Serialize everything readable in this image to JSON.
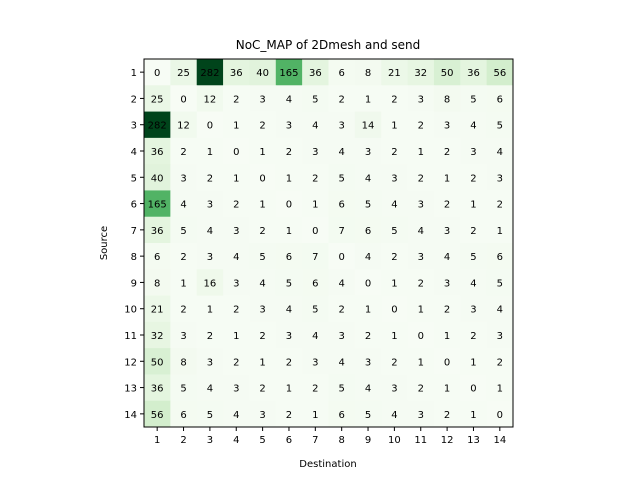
{
  "chart_data": {
    "type": "heatmap",
    "title": "NoC_MAP of 2Dmesh and send",
    "xlabel": "Destination",
    "ylabel": "Source",
    "x_ticks": [
      "1",
      "2",
      "3",
      "4",
      "5",
      "6",
      "7",
      "8",
      "9",
      "10",
      "11",
      "12",
      "13",
      "14"
    ],
    "y_ticks": [
      "1",
      "2",
      "3",
      "4",
      "5",
      "6",
      "7",
      "8",
      "9",
      "10",
      "11",
      "12",
      "13",
      "14"
    ],
    "colormap": "Greens",
    "color_range": [
      0,
      282
    ],
    "matrix": [
      [
        0,
        25,
        282,
        36,
        40,
        165,
        36,
        6,
        8,
        21,
        32,
        50,
        36,
        56
      ],
      [
        25,
        0,
        12,
        2,
        3,
        4,
        5,
        2,
        1,
        2,
        3,
        8,
        5,
        6
      ],
      [
        282,
        12,
        0,
        1,
        2,
        3,
        4,
        3,
        14,
        1,
        2,
        3,
        4,
        5
      ],
      [
        36,
        2,
        1,
        0,
        1,
        2,
        3,
        4,
        3,
        2,
        1,
        2,
        3,
        4
      ],
      [
        40,
        3,
        2,
        1,
        0,
        1,
        2,
        5,
        4,
        3,
        2,
        1,
        2,
        3
      ],
      [
        165,
        4,
        3,
        2,
        1,
        0,
        1,
        6,
        5,
        4,
        3,
        2,
        1,
        2
      ],
      [
        36,
        5,
        4,
        3,
        2,
        1,
        0,
        7,
        6,
        5,
        4,
        3,
        2,
        1
      ],
      [
        6,
        2,
        3,
        4,
        5,
        6,
        7,
        0,
        4,
        2,
        3,
        4,
        5,
        6
      ],
      [
        8,
        1,
        16,
        3,
        4,
        5,
        6,
        4,
        0,
        1,
        2,
        3,
        4,
        5
      ],
      [
        21,
        2,
        1,
        2,
        3,
        4,
        5,
        2,
        1,
        0,
        1,
        2,
        3,
        4
      ],
      [
        32,
        3,
        2,
        1,
        2,
        3,
        4,
        3,
        2,
        1,
        0,
        1,
        2,
        3
      ],
      [
        50,
        8,
        3,
        2,
        1,
        2,
        3,
        4,
        3,
        2,
        1,
        0,
        1,
        2
      ],
      [
        36,
        5,
        4,
        3,
        2,
        1,
        2,
        5,
        4,
        3,
        2,
        1,
        0,
        1
      ],
      [
        56,
        6,
        5,
        4,
        3,
        2,
        1,
        6,
        5,
        4,
        3,
        2,
        1,
        0
      ]
    ]
  }
}
